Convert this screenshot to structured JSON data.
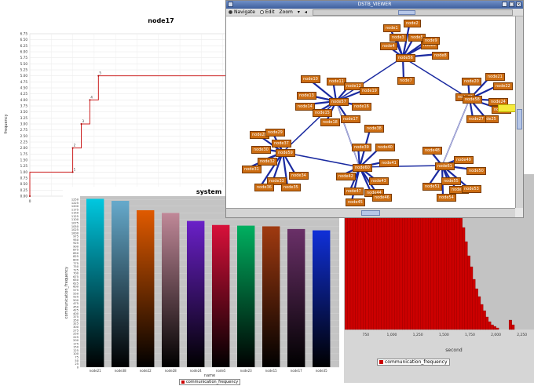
{
  "node17": {
    "title": "node17",
    "ylabel": "frequency",
    "y_ticks": [
      "0.00",
      "0.25",
      "0.50",
      "0.75",
      "1.00",
      "1.25",
      "1.50",
      "1.75",
      "2.00",
      "2.25",
      "2.50",
      "2.75",
      "3.00",
      "3.25",
      "3.50",
      "3.75",
      "4.00",
      "4.25",
      "4.50",
      "4.75",
      "5.00",
      "5.25",
      "5.50",
      "5.75",
      "6.00",
      "6.25",
      "6.50",
      "6.75"
    ],
    "x_ticks": [
      "0",
      "25",
      "50",
      "7"
    ],
    "point_labels": [
      "1",
      "2",
      "3",
      "4",
      "5"
    ],
    "line_color": "#cc2222"
  },
  "hist": {
    "x_ticks": [
      "750",
      "1,000",
      "1,250",
      "1,500",
      "1,750",
      "2,000",
      "2,250"
    ],
    "xlabel": "second",
    "legend": "communication_frequency",
    "bar_color": "#cc0000"
  },
  "system": {
    "title": "system",
    "ylabel": "communication_frequency",
    "xlabel": "name",
    "legend": "communication_frequency",
    "y_ticks": [
      "0",
      "25",
      "50",
      "75",
      "100",
      "125",
      "150",
      "175",
      "200",
      "225",
      "250",
      "275",
      "300",
      "325",
      "350",
      "375",
      "400",
      "425",
      "450",
      "475",
      "500",
      "525",
      "550",
      "575",
      "600",
      "625",
      "650",
      "675",
      "700",
      "725",
      "750",
      "775",
      "800",
      "825",
      "850",
      "875",
      "900",
      "925",
      "950",
      "975",
      "1000",
      "1025",
      "1050",
      "1075",
      "1100",
      "1125",
      "1150",
      "1175",
      "1200",
      "1225",
      "1250"
    ]
  },
  "dstb": {
    "title": "DSTB_VIEWER",
    "menu": {
      "navigate": "Navigate",
      "edit": "Edit",
      "zoom": "Zoom"
    },
    "window_buttons": {
      "minimize": "_",
      "maximize": "□",
      "close": "×"
    },
    "nodes": [
      "node1",
      "node2",
      "node3",
      "node4",
      "node5",
      "node6",
      "node7",
      "node8",
      "node9",
      "node10",
      "node11",
      "node12",
      "node13",
      "node14",
      "node15",
      "node16",
      "node17",
      "node18",
      "node19",
      "node20",
      "node21",
      "node22",
      "node23",
      "node24",
      "node25",
      "node26",
      "node27",
      "node28",
      "node29",
      "node30",
      "node31",
      "node32",
      "node33",
      "node34",
      "node35",
      "node36",
      "node37",
      "node38",
      "node39",
      "node40",
      "node41",
      "node42",
      "node43",
      "node44",
      "node45",
      "node46",
      "node47",
      "node48",
      "node49",
      "node50",
      "node51",
      "node52",
      "node53",
      "node54",
      "node55",
      "node56",
      "node57",
      "node58",
      "node59",
      "node60",
      "node61",
      "node62",
      "node63",
      "node64",
      "node65",
      "node66"
    ]
  },
  "chart_data": [
    {
      "type": "line",
      "title": "node17",
      "ylabel": "frequency",
      "xlabel": "",
      "ylim": [
        0,
        6.75
      ],
      "series": [
        {
          "x": [
            0,
            0,
            25,
            25,
            30,
            30,
            35,
            35,
            40,
            40,
            120
          ],
          "y": [
            0,
            1,
            1,
            2,
            2,
            3,
            3,
            4,
            4,
            5,
            5
          ]
        }
      ]
    },
    {
      "type": "bar",
      "title": "system",
      "xlabel": "name",
      "ylabel": "communication_frequency",
      "ylim": [
        0,
        1275
      ],
      "categories": [
        "node21",
        "node38",
        "node22",
        "node28",
        "node24",
        "node5",
        "node23",
        "node15",
        "node17",
        "node35"
      ],
      "values": [
        1255,
        1240,
        1170,
        1150,
        1090,
        1060,
        1055,
        1050,
        1030,
        1020
      ],
      "colors": [
        "#00c8e0",
        "#66aacc",
        "#e05a00",
        "#c08898",
        "#6a20c8",
        "#d8103a",
        "#00b060",
        "#a03a10",
        "#6a3068",
        "#1030d8"
      ]
    },
    {
      "type": "bar",
      "xlabel": "second",
      "legend": "communication_frequency",
      "x": [
        550,
        575,
        600,
        625,
        650,
        675,
        700,
        725,
        750,
        775,
        800,
        825,
        850,
        875,
        900,
        925,
        950,
        975,
        1000,
        1025,
        1050,
        1075,
        1100,
        1125,
        1150,
        1175,
        1200,
        1225,
        1250,
        1275,
        1300,
        1325,
        1350,
        1375,
        1400,
        1425,
        1450,
        1475,
        1500,
        1525,
        1550,
        1575,
        1600,
        1625,
        1650,
        1675,
        1700,
        1725,
        1750,
        1775,
        1800,
        1825,
        1850,
        1875,
        1900,
        1925,
        1950,
        1975,
        2000,
        2025,
        2050,
        2075,
        2100,
        2125,
        2150,
        2175,
        2200,
        2225,
        2250
      ],
      "values": [
        100,
        100,
        100,
        100,
        100,
        100,
        100,
        100,
        100,
        100,
        100,
        100,
        100,
        100,
        100,
        100,
        100,
        100,
        100,
        100,
        100,
        100,
        100,
        100,
        100,
        100,
        100,
        100,
        100,
        100,
        100,
        100,
        100,
        100,
        100,
        100,
        100,
        100,
        100,
        100,
        96,
        90,
        85,
        79,
        72,
        65,
        56,
        47,
        40,
        32,
        26,
        21,
        16,
        12,
        8,
        5,
        3,
        2,
        1,
        0,
        0,
        0,
        0,
        6,
        3,
        0,
        0,
        0,
        0
      ]
    }
  ]
}
